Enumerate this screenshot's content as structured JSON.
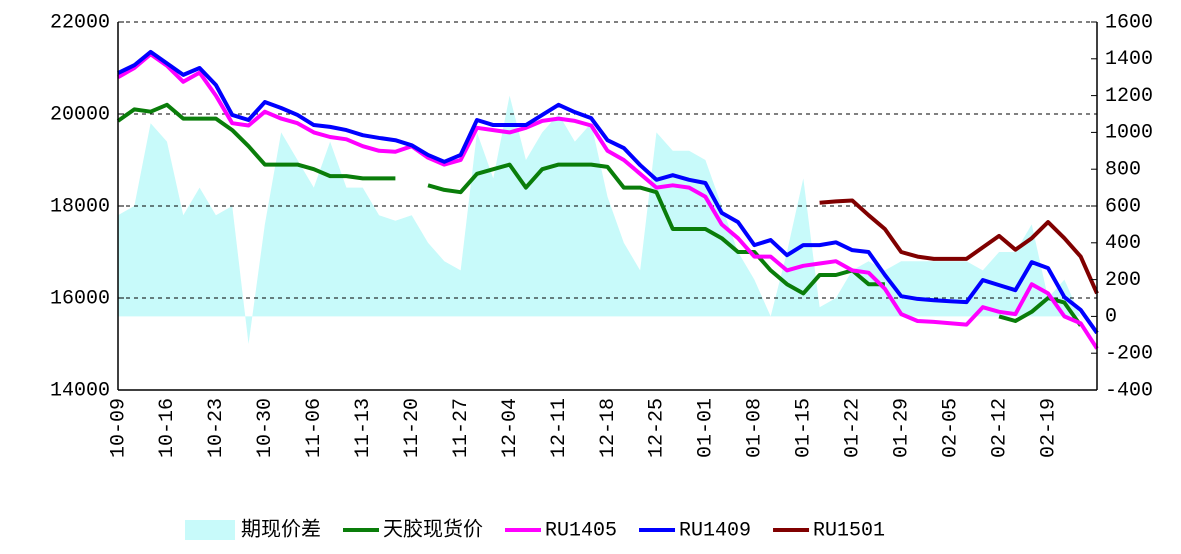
{
  "chart_data": {
    "type": "line",
    "categories": [
      "10-09",
      null,
      null,
      "10-16",
      null,
      null,
      "10-23",
      null,
      null,
      "10-30",
      null,
      null,
      "11-06",
      null,
      null,
      "11-13",
      null,
      null,
      "11-20",
      null,
      null,
      "11-27",
      null,
      null,
      "12-04",
      null,
      null,
      "12-11",
      null,
      null,
      "12-18",
      null,
      null,
      "12-25",
      null,
      null,
      "01-01",
      null,
      null,
      "01-08",
      null,
      null,
      "01-15",
      null,
      null,
      "01-22",
      null,
      null,
      "01-29",
      null,
      null,
      "02-05",
      null,
      null,
      "02-12",
      null,
      null,
      "02-19",
      null,
      null,
      null
    ],
    "ylim": [
      14000,
      22000
    ],
    "yticks": [
      14000,
      16000,
      18000,
      20000,
      22000
    ],
    "y2lim": [
      -400,
      1600
    ],
    "y2ticks": [
      -400,
      -200,
      0,
      200,
      400,
      600,
      800,
      1000,
      1200,
      1400,
      1600
    ],
    "grid": true,
    "series": [
      {
        "name": "期现价差",
        "type": "area",
        "axis": "y2",
        "color": "#c8fafa",
        "values": [
          550,
          600,
          1050,
          950,
          550,
          700,
          550,
          600,
          -150,
          500,
          1000,
          850,
          700,
          950,
          700,
          700,
          550,
          520,
          550,
          400,
          300,
          250,
          1000,
          750,
          1200,
          850,
          1000,
          1100,
          950,
          1050,
          650,
          400,
          250,
          1000,
          900,
          900,
          850,
          600,
          350,
          200,
          0,
          350,
          750,
          50,
          100,
          250,
          300,
          250,
          300,
          300,
          300,
          300,
          300,
          250,
          350,
          350,
          500,
          100,
          200,
          0,
          0
        ]
      },
      {
        "name": "天胶现货价",
        "color": "#0a7d0a",
        "values": [
          19850,
          20100,
          20050,
          20200,
          19900,
          19900,
          19900,
          19650,
          19300,
          18900,
          18900,
          18900,
          18800,
          18650,
          18650,
          18600,
          18600,
          18600,
          null,
          18450,
          18350,
          18300,
          18700,
          18800,
          18900,
          18400,
          18800,
          18900,
          18900,
          18900,
          18850,
          18400,
          18400,
          18300,
          17500,
          17500,
          17500,
          17300,
          17000,
          17000,
          16600,
          16300,
          16100,
          16500,
          16500,
          16600,
          16300,
          16300,
          null,
          null,
          null,
          null,
          null,
          null,
          15600,
          15500,
          15700,
          16000,
          15900,
          15400,
          null
        ]
      },
      {
        "name": "RU1405",
        "color": "#ff00ff",
        "values": [
          20800,
          21000,
          21300,
          21050,
          20700,
          20900,
          20400,
          19800,
          19750,
          20050,
          19900,
          19800,
          19600,
          19500,
          19450,
          19300,
          19200,
          19180,
          19300,
          19050,
          18900,
          19000,
          19700,
          19650,
          19600,
          19700,
          19850,
          19900,
          19850,
          19750,
          19200,
          19000,
          18700,
          18400,
          18450,
          18400,
          18200,
          17600,
          17300,
          16900,
          16900,
          16600,
          16700,
          16750,
          16800,
          16600,
          16550,
          16200,
          15650,
          15500,
          15480,
          15450,
          15420,
          15800,
          15700,
          15650,
          16300,
          16100,
          15600,
          15450,
          14900
        ]
      },
      {
        "name": "RU1409",
        "color": "#0000ff",
        "values": [
          20890,
          21060,
          21350,
          21100,
          20850,
          21000,
          20630,
          19980,
          19870,
          20260,
          20130,
          19980,
          19760,
          19720,
          19650,
          19540,
          19480,
          19430,
          19320,
          19110,
          18960,
          19110,
          19870,
          19760,
          19760,
          19760,
          19980,
          20200,
          20040,
          19910,
          19430,
          19260,
          18890,
          18570,
          18670,
          18570,
          18500,
          17850,
          17650,
          17150,
          17260,
          16930,
          17150,
          17150,
          17210,
          17040,
          17000,
          16500,
          16040,
          15980,
          15950,
          15930,
          15910,
          16390,
          16280,
          16170,
          16780,
          16650,
          16020,
          15740,
          15240
        ]
      },
      {
        "name": "RU1501",
        "color": "#800000",
        "values": [
          null,
          null,
          null,
          null,
          null,
          null,
          null,
          null,
          null,
          null,
          null,
          null,
          null,
          null,
          null,
          null,
          null,
          null,
          null,
          null,
          null,
          null,
          null,
          null,
          null,
          null,
          null,
          null,
          null,
          null,
          null,
          null,
          null,
          null,
          null,
          null,
          null,
          null,
          null,
          null,
          null,
          null,
          null,
          18070,
          18100,
          18120,
          17800,
          17500,
          17000,
          16900,
          16850,
          16850,
          16850,
          17100,
          17350,
          17050,
          17300,
          17650,
          17300,
          16900,
          16100
        ]
      }
    ]
  }
}
